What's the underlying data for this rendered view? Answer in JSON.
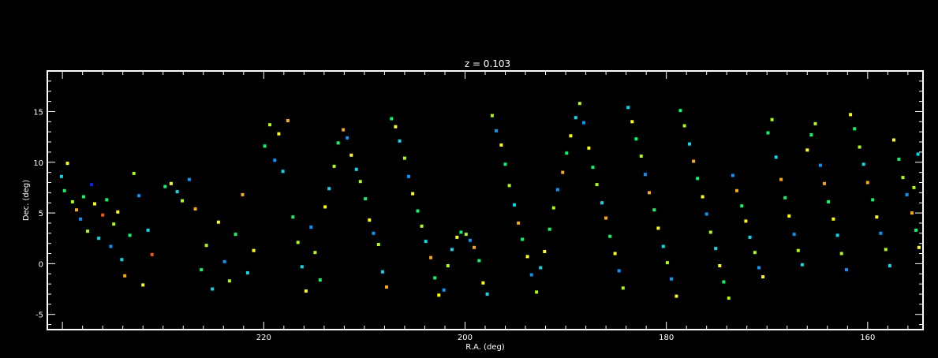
{
  "chart_data": {
    "type": "scatter",
    "title": "z = 0.103",
    "xlabel": "R.A. (deg)",
    "ylabel": "Dec. (deg)",
    "xlim": [
      241.5,
      154.5
    ],
    "ylim": [
      -6.5,
      19
    ],
    "x_ticks": [
      220,
      200,
      180,
      160
    ],
    "x_tick_labels": [
      "220",
      "200",
      "180",
      "160"
    ],
    "y_ticks": [
      -5,
      0,
      5,
      10,
      15
    ],
    "y_tick_labels": [
      "-5",
      "0",
      "5",
      "10",
      "15"
    ],
    "grid": false,
    "legend": "none",
    "background": "#000000",
    "axis_color": "#ffffff",
    "colors": [
      "#3a00c8",
      "#0028ff",
      "#0099ff",
      "#00ddee",
      "#00ff66",
      "#aaff00",
      "#ffff00",
      "#ffaa00",
      "#ff5500",
      "#ff1a1a"
    ],
    "series": [
      {
        "points": [
          [
            240.1,
            8.6,
            3
          ],
          [
            239.8,
            7.2,
            4
          ],
          [
            239.5,
            9.9,
            6
          ],
          [
            239.0,
            6.1,
            5
          ],
          [
            238.6,
            5.3,
            7
          ],
          [
            238.2,
            4.4,
            2
          ],
          [
            237.9,
            6.6,
            4
          ],
          [
            237.5,
            3.2,
            5
          ],
          [
            237.1,
            7.8,
            1
          ],
          [
            236.8,
            5.9,
            6
          ],
          [
            236.4,
            2.5,
            3
          ],
          [
            236.0,
            4.8,
            8
          ],
          [
            235.6,
            6.3,
            4
          ],
          [
            235.2,
            1.7,
            2
          ],
          [
            234.9,
            3.9,
            5
          ],
          [
            234.5,
            5.1,
            6
          ],
          [
            234.1,
            0.4,
            3
          ],
          [
            233.8,
            -1.2,
            7
          ],
          [
            233.3,
            2.8,
            4
          ],
          [
            232.9,
            8.9,
            5
          ],
          [
            232.4,
            6.7,
            2
          ],
          [
            232.0,
            -2.1,
            6
          ],
          [
            231.5,
            3.3,
            3
          ],
          [
            231.1,
            0.9,
            8
          ],
          [
            229.8,
            7.6,
            4
          ],
          [
            229.2,
            7.9,
            6
          ],
          [
            228.6,
            7.1,
            3
          ],
          [
            228.1,
            6.2,
            5
          ],
          [
            227.4,
            8.3,
            2
          ],
          [
            226.8,
            5.4,
            7
          ],
          [
            226.2,
            -0.6,
            4
          ],
          [
            225.7,
            1.8,
            5
          ],
          [
            225.1,
            -2.5,
            3
          ],
          [
            224.5,
            4.1,
            6
          ],
          [
            223.9,
            0.2,
            2
          ],
          [
            223.4,
            -1.7,
            5
          ],
          [
            222.8,
            2.9,
            4
          ],
          [
            222.1,
            6.8,
            7
          ],
          [
            221.6,
            -0.9,
            3
          ],
          [
            221.0,
            1.3,
            6
          ],
          [
            219.9,
            11.6,
            4
          ],
          [
            219.4,
            13.7,
            5
          ],
          [
            218.9,
            10.2,
            2
          ],
          [
            218.5,
            12.8,
            6
          ],
          [
            218.1,
            9.1,
            3
          ],
          [
            217.6,
            14.1,
            7
          ],
          [
            217.1,
            4.6,
            4
          ],
          [
            216.6,
            2.1,
            5
          ],
          [
            216.2,
            -0.3,
            3
          ],
          [
            215.8,
            -2.7,
            6
          ],
          [
            215.3,
            3.6,
            2
          ],
          [
            214.9,
            1.1,
            5
          ],
          [
            214.4,
            -1.6,
            4
          ],
          [
            213.9,
            5.6,
            6
          ],
          [
            213.5,
            7.4,
            3
          ],
          [
            213.0,
            9.6,
            5
          ],
          [
            212.6,
            11.9,
            4
          ],
          [
            212.1,
            13.2,
            7
          ],
          [
            211.7,
            12.4,
            2
          ],
          [
            211.3,
            10.7,
            6
          ],
          [
            210.8,
            9.3,
            3
          ],
          [
            210.4,
            8.1,
            5
          ],
          [
            209.9,
            6.4,
            4
          ],
          [
            209.5,
            4.3,
            6
          ],
          [
            209.1,
            3.0,
            2
          ],
          [
            208.6,
            1.9,
            5
          ],
          [
            208.2,
            -0.8,
            3
          ],
          [
            207.8,
            -2.3,
            7
          ],
          [
            207.3,
            14.3,
            4
          ],
          [
            206.9,
            13.5,
            6
          ],
          [
            206.5,
            12.1,
            3
          ],
          [
            206.0,
            10.4,
            5
          ],
          [
            205.6,
            8.6,
            2
          ],
          [
            205.2,
            6.9,
            6
          ],
          [
            204.7,
            5.2,
            4
          ],
          [
            204.3,
            3.7,
            5
          ],
          [
            203.9,
            2.2,
            3
          ],
          [
            203.4,
            0.6,
            7
          ],
          [
            203.0,
            -1.4,
            4
          ],
          [
            202.6,
            -3.1,
            6
          ],
          [
            202.1,
            -2.6,
            2
          ],
          [
            201.7,
            -0.2,
            5
          ],
          [
            201.3,
            1.4,
            3
          ],
          [
            200.8,
            2.6,
            6
          ],
          [
            200.4,
            3.1,
            4
          ],
          [
            199.9,
            2.9,
            5
          ],
          [
            199.5,
            2.3,
            2
          ],
          [
            199.1,
            1.6,
            7
          ],
          [
            198.6,
            0.3,
            4
          ],
          [
            198.2,
            -1.9,
            6
          ],
          [
            197.8,
            -3.0,
            3
          ],
          [
            197.3,
            14.6,
            5
          ],
          [
            196.9,
            13.1,
            2
          ],
          [
            196.4,
            11.7,
            6
          ],
          [
            196.0,
            9.8,
            4
          ],
          [
            195.6,
            7.7,
            5
          ],
          [
            195.1,
            5.8,
            3
          ],
          [
            194.7,
            4.0,
            7
          ],
          [
            194.3,
            2.4,
            4
          ],
          [
            193.8,
            0.7,
            6
          ],
          [
            193.4,
            -1.1,
            2
          ],
          [
            192.9,
            -2.8,
            5
          ],
          [
            192.5,
            -0.4,
            3
          ],
          [
            192.1,
            1.2,
            6
          ],
          [
            191.6,
            3.4,
            4
          ],
          [
            191.2,
            5.5,
            5
          ],
          [
            190.8,
            7.3,
            2
          ],
          [
            190.3,
            9.0,
            7
          ],
          [
            189.9,
            10.9,
            4
          ],
          [
            189.5,
            12.6,
            6
          ],
          [
            189.0,
            14.4,
            3
          ],
          [
            188.6,
            15.8,
            5
          ],
          [
            188.2,
            13.9,
            2
          ],
          [
            187.7,
            11.4,
            6
          ],
          [
            187.3,
            9.5,
            4
          ],
          [
            186.9,
            7.8,
            5
          ],
          [
            186.4,
            6.0,
            3
          ],
          [
            186.0,
            4.5,
            7
          ],
          [
            185.6,
            2.7,
            4
          ],
          [
            185.1,
            1.0,
            6
          ],
          [
            184.7,
            -0.7,
            2
          ],
          [
            184.3,
            -2.4,
            5
          ],
          [
            183.8,
            15.4,
            3
          ],
          [
            183.4,
            14.0,
            6
          ],
          [
            183.0,
            12.3,
            4
          ],
          [
            182.5,
            10.6,
            5
          ],
          [
            182.1,
            8.8,
            2
          ],
          [
            181.7,
            7.0,
            7
          ],
          [
            181.2,
            5.3,
            4
          ],
          [
            180.8,
            3.5,
            6
          ],
          [
            180.3,
            1.7,
            3
          ],
          [
            179.9,
            0.1,
            5
          ],
          [
            179.5,
            -1.5,
            2
          ],
          [
            179.0,
            -3.2,
            6
          ],
          [
            178.6,
            15.1,
            4
          ],
          [
            178.2,
            13.6,
            5
          ],
          [
            177.7,
            11.8,
            3
          ],
          [
            177.3,
            10.1,
            7
          ],
          [
            176.9,
            8.4,
            4
          ],
          [
            176.4,
            6.6,
            6
          ],
          [
            176.0,
            4.9,
            2
          ],
          [
            175.6,
            3.1,
            5
          ],
          [
            175.1,
            1.5,
            3
          ],
          [
            174.7,
            -0.2,
            6
          ],
          [
            174.3,
            -1.8,
            4
          ],
          [
            173.8,
            -3.4,
            5
          ],
          [
            173.4,
            8.7,
            2
          ],
          [
            173.0,
            7.2,
            7
          ],
          [
            172.5,
            5.7,
            4
          ],
          [
            172.1,
            4.2,
            6
          ],
          [
            171.7,
            2.6,
            3
          ],
          [
            171.2,
            1.1,
            5
          ],
          [
            170.8,
            -0.4,
            2
          ],
          [
            170.4,
            -1.3,
            6
          ],
          [
            169.9,
            12.9,
            4
          ],
          [
            169.5,
            14.2,
            5
          ],
          [
            169.1,
            10.5,
            3
          ],
          [
            168.6,
            8.3,
            7
          ],
          [
            168.2,
            6.5,
            4
          ],
          [
            167.8,
            4.7,
            6
          ],
          [
            167.3,
            2.9,
            2
          ],
          [
            166.9,
            1.3,
            5
          ],
          [
            166.5,
            -0.1,
            3
          ],
          [
            166.0,
            11.2,
            6
          ],
          [
            165.6,
            12.7,
            4
          ],
          [
            165.2,
            13.8,
            5
          ],
          [
            164.7,
            9.7,
            2
          ],
          [
            164.3,
            7.9,
            7
          ],
          [
            163.9,
            6.1,
            4
          ],
          [
            163.4,
            4.4,
            6
          ],
          [
            163.0,
            2.8,
            3
          ],
          [
            162.6,
            1.0,
            5
          ],
          [
            162.1,
            -0.6,
            2
          ],
          [
            161.7,
            14.7,
            6
          ],
          [
            161.3,
            13.3,
            4
          ],
          [
            160.8,
            11.5,
            5
          ],
          [
            160.4,
            9.8,
            3
          ],
          [
            160.0,
            8.0,
            7
          ],
          [
            159.5,
            6.3,
            4
          ],
          [
            159.1,
            4.6,
            6
          ],
          [
            158.7,
            3.0,
            2
          ],
          [
            158.2,
            1.4,
            5
          ],
          [
            157.8,
            -0.2,
            3
          ],
          [
            157.4,
            12.2,
            6
          ],
          [
            156.9,
            10.3,
            4
          ],
          [
            156.5,
            8.5,
            5
          ],
          [
            156.1,
            6.8,
            2
          ],
          [
            155.6,
            5.0,
            7
          ],
          [
            155.2,
            3.3,
            4
          ],
          [
            154.9,
            1.6,
            6
          ],
          [
            155.0,
            10.8,
            3
          ],
          [
            155.4,
            7.5,
            5
          ]
        ]
      }
    ]
  }
}
